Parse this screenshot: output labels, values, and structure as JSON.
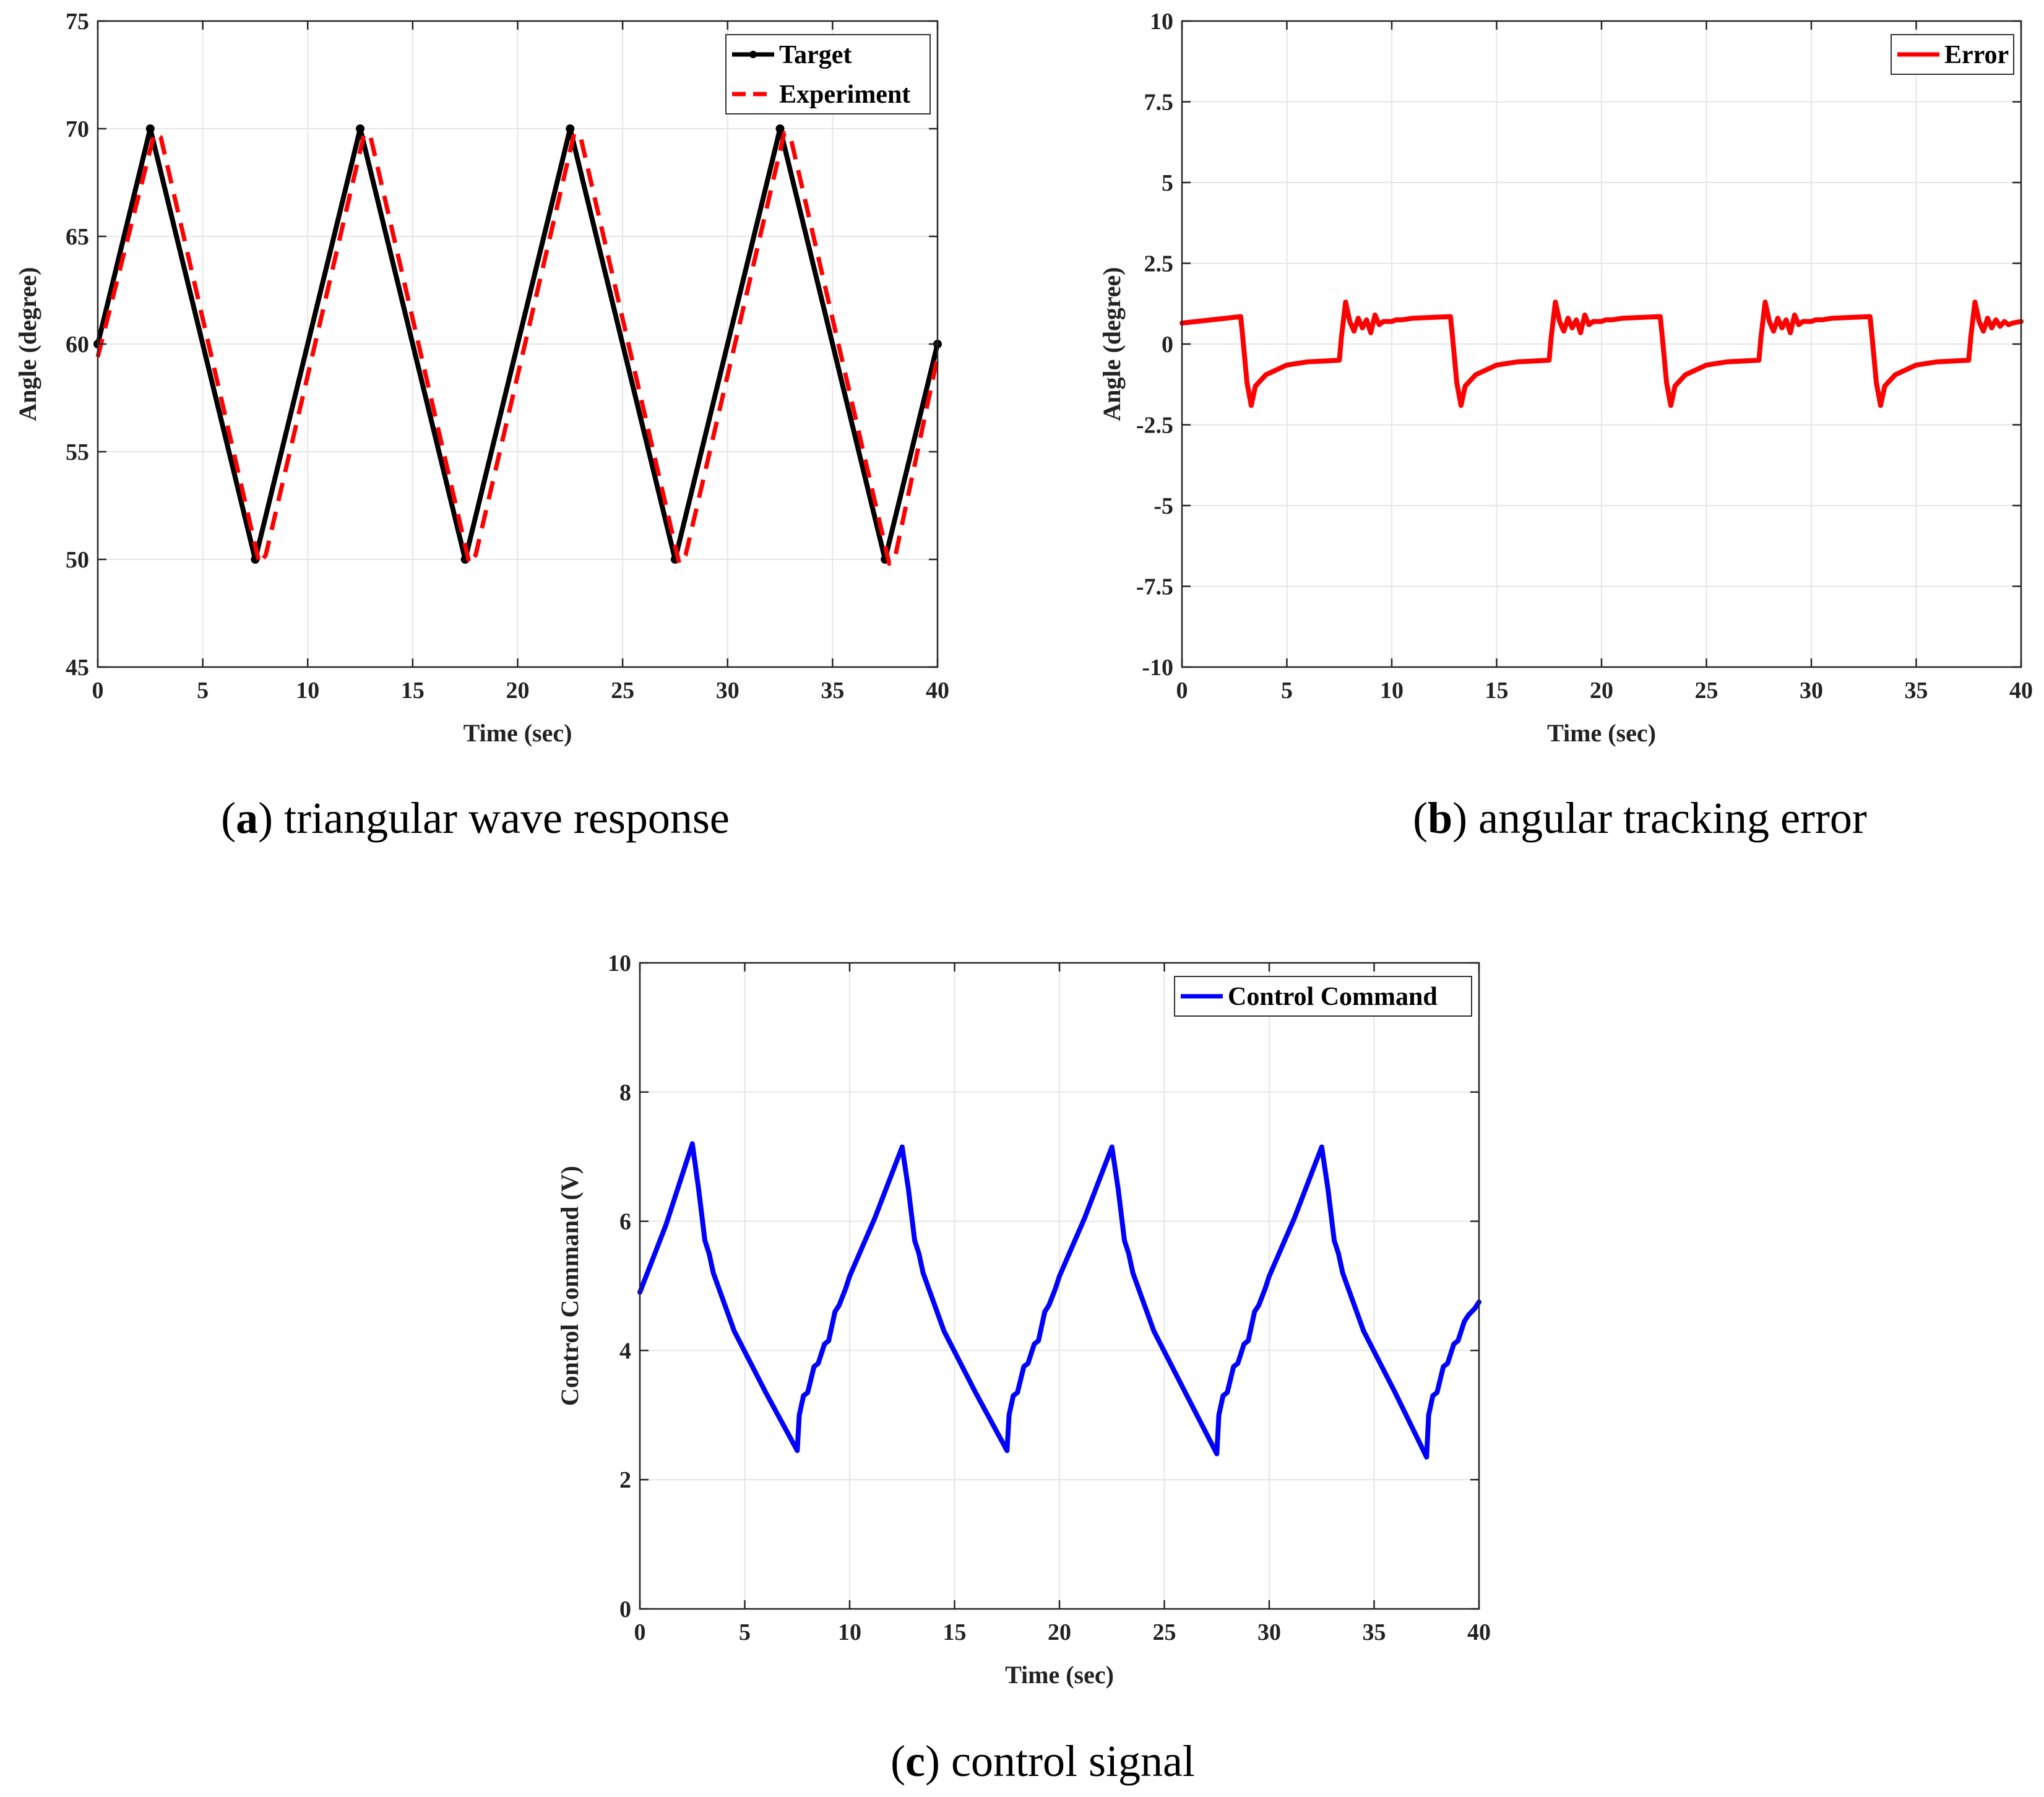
{
  "chart_data": [
    {
      "id": "a",
      "type": "line",
      "xlabel": "Time (sec)",
      "ylabel": "Angle (degree)",
      "xlim": [
        0,
        40
      ],
      "ylim": [
        45,
        75
      ],
      "xticks": [
        0,
        5,
        10,
        15,
        20,
        25,
        30,
        35,
        40
      ],
      "yticks": [
        45,
        50,
        55,
        60,
        65,
        70,
        75
      ],
      "grid": true,
      "legend_position": "top-right",
      "caption_letter": "a",
      "caption_text": " triangular wave response",
      "series": [
        {
          "name": "Target",
          "color": "#000000",
          "style": "solid-with-markers",
          "x": [
            0,
            2.5,
            7.5,
            12.5,
            17.5,
            22.5,
            27.5,
            32.5,
            37.5,
            40
          ],
          "y": [
            60,
            70,
            50,
            70,
            50,
            70,
            50,
            70,
            50,
            60
          ]
        },
        {
          "name": "Experiment",
          "color": "#ff0000",
          "style": "dashed",
          "x": [
            0,
            2.7,
            3.0,
            7.7,
            8.0,
            12.7,
            13.0,
            17.7,
            18.0,
            22.7,
            23.0,
            27.7,
            28.0,
            32.7,
            33.0,
            37.7,
            38.0,
            40
          ],
          "y": [
            59.4,
            69.8,
            69.6,
            49.8,
            50.2,
            69.8,
            69.6,
            49.8,
            50.2,
            69.8,
            69.6,
            49.8,
            50.2,
            69.8,
            69.6,
            49.8,
            50.2,
            59.4
          ]
        }
      ]
    },
    {
      "id": "b",
      "type": "line",
      "xlabel": "Time (sec)",
      "ylabel": "Angle (degree)",
      "xlim": [
        0,
        40
      ],
      "ylim": [
        -10,
        10
      ],
      "xticks": [
        0,
        5,
        10,
        15,
        20,
        25,
        30,
        35,
        40
      ],
      "yticks": [
        -10,
        -7.5,
        -5,
        -2.5,
        0,
        2.5,
        5,
        7.5,
        10
      ],
      "grid": true,
      "legend_position": "top-right",
      "caption_letter": "b",
      "caption_text": " angular tracking error",
      "series": [
        {
          "name": "Error",
          "color": "#ff0000",
          "style": "solid",
          "x": [
            0,
            2.8,
            2.9,
            3.1,
            3.3,
            3.5,
            4,
            5,
            6,
            7.5,
            7.6,
            7.8,
            8.0,
            8.2,
            8.4,
            8.6,
            8.8,
            9.0,
            9.2,
            9.4,
            9.6,
            9.8,
            10.0,
            10.2,
            10.5,
            11,
            12.8,
            12.9,
            13.1,
            13.3,
            13.5,
            14,
            15,
            16,
            17.5,
            17.6,
            17.8,
            18.0,
            18.2,
            18.4,
            18.6,
            18.8,
            19.0,
            19.2,
            19.4,
            19.6,
            19.8,
            20.0,
            20.2,
            20.5,
            21,
            22.8,
            22.9,
            23.1,
            23.3,
            23.5,
            24,
            25,
            26,
            27.5,
            27.6,
            27.8,
            28.0,
            28.2,
            28.4,
            28.6,
            28.8,
            29.0,
            29.2,
            29.4,
            29.6,
            29.8,
            30.0,
            30.2,
            30.5,
            31,
            32.8,
            32.9,
            33.1,
            33.3,
            33.5,
            34,
            35,
            36,
            37.5,
            37.6,
            37.8,
            38.0,
            38.2,
            38.4,
            38.6,
            38.8,
            39.0,
            39.2,
            39.4,
            39.6,
            40
          ],
          "y": [
            0.65,
            0.85,
            0.2,
            -1.2,
            -1.9,
            -1.3,
            -0.95,
            -0.65,
            -0.55,
            -0.5,
            0.2,
            1.3,
            0.7,
            0.4,
            0.8,
            0.5,
            0.75,
            0.35,
            0.9,
            0.6,
            0.7,
            0.7,
            0.7,
            0.75,
            0.75,
            0.8,
            0.85,
            0.2,
            -1.2,
            -1.9,
            -1.3,
            -0.95,
            -0.65,
            -0.55,
            -0.5,
            0.2,
            1.3,
            0.7,
            0.4,
            0.8,
            0.5,
            0.75,
            0.35,
            0.9,
            0.6,
            0.7,
            0.7,
            0.7,
            0.75,
            0.75,
            0.8,
            0.85,
            0.2,
            -1.2,
            -1.9,
            -1.3,
            -0.95,
            -0.65,
            -0.55,
            -0.5,
            0.2,
            1.3,
            0.7,
            0.4,
            0.8,
            0.5,
            0.75,
            0.35,
            0.9,
            0.6,
            0.7,
            0.7,
            0.7,
            0.75,
            0.75,
            0.8,
            0.85,
            0.2,
            -1.2,
            -1.9,
            -1.3,
            -0.95,
            -0.65,
            -0.55,
            -0.5,
            0.2,
            1.3,
            0.7,
            0.4,
            0.8,
            0.5,
            0.75,
            0.55,
            0.7,
            0.6,
            0.65,
            0.7
          ]
        }
      ]
    },
    {
      "id": "c",
      "type": "line",
      "xlabel": "Time (sec)",
      "ylabel": "Control Command (V)",
      "xlim": [
        0,
        40
      ],
      "ylim": [
        0,
        10
      ],
      "xticks": [
        0,
        5,
        10,
        15,
        20,
        25,
        30,
        35,
        40
      ],
      "yticks": [
        0,
        2,
        4,
        6,
        8,
        10
      ],
      "grid": true,
      "legend_position": "top-right",
      "caption_letter": "c",
      "caption_text": " control signal",
      "series": [
        {
          "name": "Control Command",
          "color": "#0000ff",
          "style": "solid",
          "x": [
            0,
            1.25,
            2.5,
            2.8,
            3.1,
            3.3,
            3.5,
            4.5,
            6,
            7.5,
            7.6,
            7.8,
            8.0,
            8.3,
            8.5,
            8.8,
            9.0,
            9.3,
            9.5,
            9.8,
            10.0,
            11.2,
            12.5,
            12.8,
            13.1,
            13.3,
            13.5,
            14.5,
            16,
            17.5,
            17.6,
            17.8,
            18.0,
            18.3,
            18.5,
            18.8,
            19.0,
            19.3,
            19.5,
            19.8,
            20.0,
            21.2,
            22.5,
            22.8,
            23.1,
            23.3,
            23.5,
            24.5,
            26,
            27.5,
            27.6,
            27.8,
            28.0,
            28.3,
            28.5,
            28.8,
            29.0,
            29.3,
            29.5,
            29.8,
            30.0,
            31.2,
            32.5,
            32.8,
            33.1,
            33.3,
            33.5,
            34.5,
            36,
            37.5,
            37.6,
            37.8,
            38.0,
            38.3,
            38.5,
            38.8,
            39.0,
            39.3,
            39.5,
            39.8,
            40
          ],
          "y": [
            4.9,
            5.95,
            7.2,
            6.5,
            5.7,
            5.5,
            5.2,
            4.3,
            3.35,
            2.45,
            3.0,
            3.3,
            3.35,
            3.75,
            3.8,
            4.1,
            4.15,
            4.6,
            4.7,
            4.95,
            5.15,
            6.05,
            7.15,
            6.5,
            5.7,
            5.5,
            5.2,
            4.3,
            3.35,
            2.45,
            3.0,
            3.3,
            3.35,
            3.75,
            3.8,
            4.1,
            4.15,
            4.6,
            4.7,
            4.95,
            5.15,
            6.05,
            7.15,
            6.5,
            5.7,
            5.5,
            5.2,
            4.3,
            3.35,
            2.4,
            3.0,
            3.3,
            3.35,
            3.75,
            3.8,
            4.1,
            4.15,
            4.6,
            4.7,
            4.95,
            5.15,
            6.05,
            7.15,
            6.5,
            5.7,
            5.5,
            5.2,
            4.3,
            3.35,
            2.35,
            3.0,
            3.3,
            3.35,
            3.75,
            3.8,
            4.1,
            4.15,
            4.45,
            4.55,
            4.65,
            4.75
          ]
        }
      ]
    }
  ]
}
